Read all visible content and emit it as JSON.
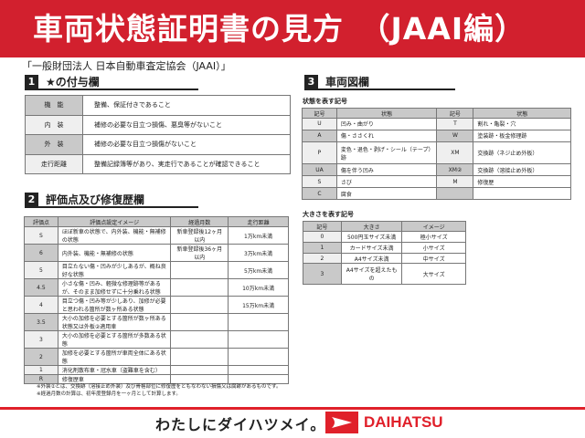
{
  "header": {
    "title": "車両状態証明書の見方　（JAAI編）",
    "organization": "「一般財団法人 日本自動車査定協会（JAAI）」"
  },
  "section1": {
    "num": "1",
    "title": "★の付与欄",
    "rows": [
      {
        "label": "機　能",
        "text": "整備、保証付きであること"
      },
      {
        "label": "内　装",
        "text": "補修の必要な目立つ損傷、悪臭等がないこと"
      },
      {
        "label": "外　装",
        "text": "補修の必要な目立つ損傷がないこと"
      },
      {
        "label": "走行距離",
        "text": "整備記録簿等があり、実走行であることが確認できること"
      }
    ]
  },
  "section2": {
    "num": "2",
    "title": "評価点及び修復歴欄",
    "headers": [
      "評価点",
      "評価点設定イメージ",
      "経過月数",
      "走行距離"
    ],
    "rows": [
      [
        "S",
        "ほぼ新車の状態で、内外装、機能・無補修の状態",
        "新車登録後12ヶ月以内",
        "1万km未満"
      ],
      [
        "6",
        "内外装、機能・無補修の状態",
        "新車登録後36ヶ月以内",
        "3万km未満"
      ],
      [
        "5",
        "目立たない傷・凹みが少しあるが、概ね良好な状態",
        "",
        "5万km未満"
      ],
      [
        "4.5",
        "小さな傷・凹み、軽微な修理跡等があるが、そのまま加修せずに十分乗れる状態",
        "",
        "10万km未満"
      ],
      [
        "4",
        "目立つ傷・凹み等が少しあり、加修が必要と思われる箇所が数ヶ所ある状態",
        "",
        "15万km未満"
      ],
      [
        "3.5",
        "大小の加修を必要とする箇所が数ヶ所ある状態又は外板②適用車",
        "",
        ""
      ],
      [
        "3",
        "大小の加修を必要とする箇所が多数ある状態",
        "",
        ""
      ],
      [
        "2",
        "加修を必要とする箇所が車両全体にある状態",
        "",
        ""
      ],
      [
        "1",
        "消化剤散布車・冠水車（盗難車を含む）",
        "",
        ""
      ],
      [
        "R",
        "修復歴車",
        "",
        ""
      ]
    ]
  },
  "section3": {
    "num": "3",
    "title": "車両図欄",
    "condition_label": "状態を表す記号",
    "condition_headers": [
      "記号",
      "状態",
      "記号",
      "状態"
    ],
    "condition_rows": [
      [
        "U",
        "凹み・曲がり",
        "T",
        "割れ・亀裂・穴"
      ],
      [
        "A",
        "傷・ささくれ",
        "W",
        "塗装跡・板金修理跡"
      ],
      [
        "P",
        "変色・退色・剥げ・シール（テープ）跡",
        "XM",
        "交換跡（ネジ止め外板）"
      ],
      [
        "UA",
        "傷を伴う凹み",
        "XM②",
        "交換跡（溶接止め外板）"
      ],
      [
        "S",
        "さび",
        "M",
        "修復歴"
      ],
      [
        "C",
        "腐食",
        "",
        ""
      ]
    ],
    "size_label": "大きさを表す記号",
    "size_headers": [
      "記号",
      "大きさ",
      "イメージ"
    ],
    "size_rows": [
      [
        "0",
        "500円玉サイズ未満",
        "極小サイズ"
      ],
      [
        "1",
        "カードサイズ未満",
        "小サイズ"
      ],
      [
        "2",
        "A4サイズ未満",
        "中サイズ"
      ],
      [
        "3",
        "A4サイズを超えたもの",
        "大サイズ"
      ]
    ]
  },
  "notes": [
    "※外装②とは、交換跡（溶接止め外装）及び骨格部位に修復歴をともなわない損傷又は腐跡があるものです。",
    "※経過月数の計算は、初年度登録月を一ヶ月として計算します。"
  ],
  "footer": {
    "slogan": "わたしにダイハツメイ。",
    "brand": "DAIHATSU"
  },
  "colors": {
    "brand_red": "#d2202e",
    "header_gray": "#c9c9c9",
    "light_gray": "#efefef"
  }
}
